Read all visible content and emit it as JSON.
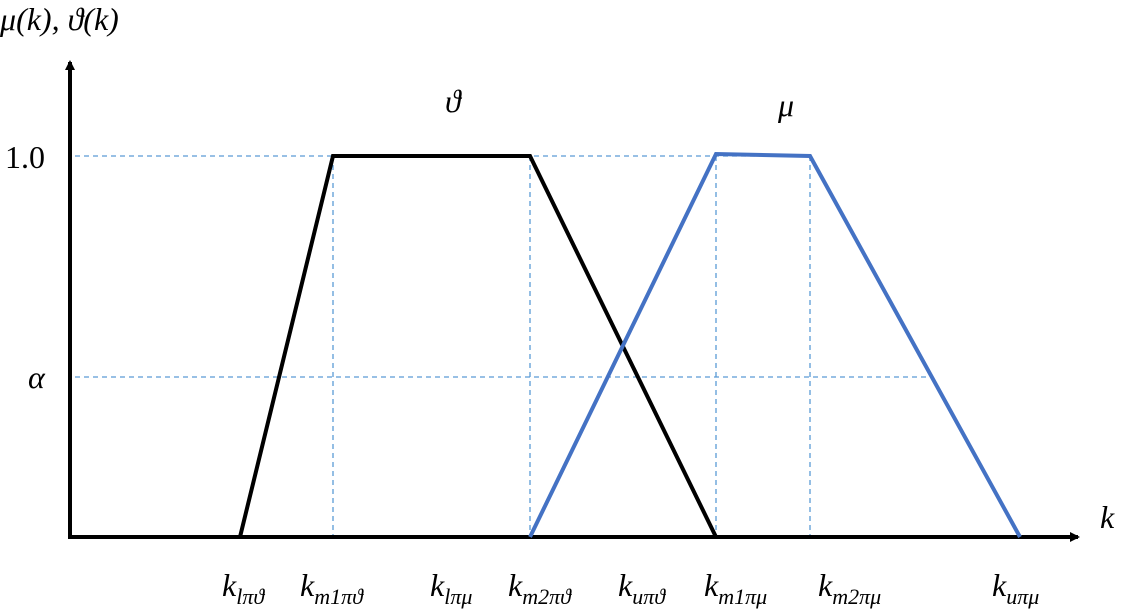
{
  "diagram": {
    "y_axis_label": "μ(k), ϑ(k)",
    "x_axis_label": "k",
    "y_labels": [
      "1.0",
      "α"
    ],
    "curve_labels": [
      "ϑ",
      "μ"
    ],
    "x_labels": [
      {
        "base": "k",
        "sub": "lπϑ"
      },
      {
        "base": "k",
        "sub": "m1πϑ"
      },
      {
        "base": "k",
        "sub": "lπμ"
      },
      {
        "base": "k",
        "sub": "m2πϑ"
      },
      {
        "base": "k",
        "sub": "uπϑ"
      },
      {
        "base": "k",
        "sub": "m1πμ"
      },
      {
        "base": "k",
        "sub": "m2πμ"
      },
      {
        "base": "k",
        "sub": "uπμ"
      }
    ]
  }
}
